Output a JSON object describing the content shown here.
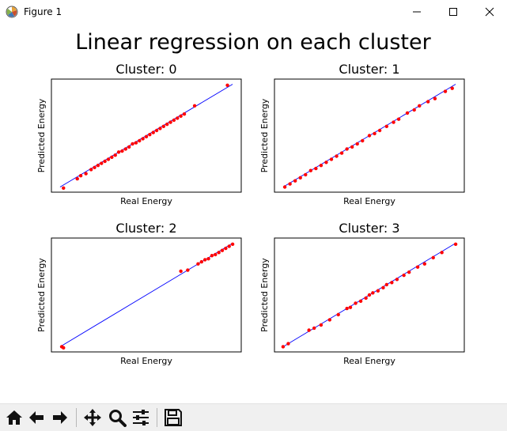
{
  "window": {
    "title": "Figure 1"
  },
  "figure": {
    "suptitle": "Linear regression on each cluster"
  },
  "chart_data": [
    {
      "type": "scatter",
      "title": "Cluster: 0",
      "xlabel": "Real Energy",
      "ylabel": "Predicted Energy",
      "xlim": [
        -0.05,
        1.05
      ],
      "ylim": [
        -0.05,
        1.05
      ],
      "ticks_visible": false,
      "grid": false,
      "series": [
        {
          "kind": "line",
          "color": "#0000ff",
          "x": [
            0.0,
            1.0
          ],
          "y": [
            0.0,
            1.0
          ]
        },
        {
          "kind": "scatter",
          "color": "#ff0000",
          "x": [
            0.02,
            0.1,
            0.12,
            0.15,
            0.18,
            0.2,
            0.22,
            0.24,
            0.26,
            0.28,
            0.3,
            0.32,
            0.34,
            0.36,
            0.38,
            0.4,
            0.42,
            0.44,
            0.46,
            0.48,
            0.5,
            0.52,
            0.54,
            0.56,
            0.58,
            0.6,
            0.62,
            0.64,
            0.66,
            0.68,
            0.7,
            0.72,
            0.78,
            0.97
          ],
          "y": [
            -0.01,
            0.08,
            0.11,
            0.13,
            0.17,
            0.19,
            0.21,
            0.23,
            0.25,
            0.27,
            0.29,
            0.31,
            0.34,
            0.35,
            0.37,
            0.39,
            0.42,
            0.43,
            0.45,
            0.47,
            0.49,
            0.51,
            0.53,
            0.55,
            0.57,
            0.59,
            0.61,
            0.63,
            0.65,
            0.67,
            0.69,
            0.71,
            0.79,
            0.99
          ]
        }
      ]
    },
    {
      "type": "scatter",
      "title": "Cluster: 1",
      "xlabel": "Real Energy",
      "ylabel": "Predicted Energy",
      "xlim": [
        -0.05,
        1.05
      ],
      "ylim": [
        -0.05,
        1.05
      ],
      "ticks_visible": false,
      "grid": false,
      "series": [
        {
          "kind": "line",
          "color": "#0000ff",
          "x": [
            0.0,
            1.0
          ],
          "y": [
            0.0,
            1.0
          ]
        },
        {
          "kind": "scatter",
          "color": "#ff0000",
          "x": [
            0.01,
            0.04,
            0.07,
            0.1,
            0.13,
            0.16,
            0.19,
            0.22,
            0.25,
            0.28,
            0.31,
            0.34,
            0.37,
            0.4,
            0.43,
            0.46,
            0.5,
            0.53,
            0.56,
            0.6,
            0.64,
            0.67,
            0.72,
            0.76,
            0.79,
            0.84,
            0.88,
            0.94,
            0.98
          ],
          "y": [
            0.0,
            0.03,
            0.06,
            0.09,
            0.12,
            0.16,
            0.18,
            0.21,
            0.24,
            0.27,
            0.3,
            0.33,
            0.37,
            0.39,
            0.42,
            0.45,
            0.5,
            0.52,
            0.55,
            0.59,
            0.63,
            0.66,
            0.72,
            0.75,
            0.79,
            0.83,
            0.86,
            0.93,
            0.96
          ]
        }
      ]
    },
    {
      "type": "scatter",
      "title": "Cluster: 2",
      "xlabel": "Real Energy",
      "ylabel": "Predicted Energy",
      "xlim": [
        -0.05,
        1.05
      ],
      "ylim": [
        -0.05,
        1.05
      ],
      "ticks_visible": false,
      "grid": false,
      "series": [
        {
          "kind": "line",
          "color": "#0000ff",
          "x": [
            0.0,
            1.0
          ],
          "y": [
            0.0,
            1.0
          ]
        },
        {
          "kind": "scatter",
          "color": "#ff0000",
          "x": [
            0.01,
            0.02,
            0.7,
            0.74,
            0.8,
            0.82,
            0.84,
            0.86,
            0.88,
            0.9,
            0.92,
            0.94,
            0.96,
            0.98,
            1.0
          ],
          "y": [
            0.0,
            -0.01,
            0.73,
            0.74,
            0.8,
            0.82,
            0.84,
            0.85,
            0.88,
            0.89,
            0.91,
            0.93,
            0.95,
            0.97,
            0.99
          ]
        }
      ]
    },
    {
      "type": "scatter",
      "title": "Cluster: 3",
      "xlabel": "Real Energy",
      "ylabel": "Predicted Energy",
      "xlim": [
        -0.05,
        1.05
      ],
      "ylim": [
        -0.05,
        1.05
      ],
      "ticks_visible": false,
      "grid": false,
      "series": [
        {
          "kind": "line",
          "color": "#0000ff",
          "x": [
            0.0,
            1.0
          ],
          "y": [
            0.0,
            1.0
          ]
        },
        {
          "kind": "scatter",
          "color": "#ff0000",
          "x": [
            0.0,
            0.03,
            0.15,
            0.18,
            0.22,
            0.27,
            0.32,
            0.37,
            0.39,
            0.42,
            0.45,
            0.48,
            0.5,
            0.52,
            0.55,
            0.58,
            0.6,
            0.63,
            0.66,
            0.7,
            0.73,
            0.78,
            0.82,
            0.87,
            0.92,
            1.0
          ],
          "y": [
            0.0,
            0.03,
            0.16,
            0.18,
            0.21,
            0.26,
            0.31,
            0.37,
            0.38,
            0.42,
            0.44,
            0.47,
            0.5,
            0.52,
            0.54,
            0.57,
            0.6,
            0.62,
            0.65,
            0.69,
            0.72,
            0.77,
            0.8,
            0.86,
            0.91,
            0.99
          ]
        }
      ]
    }
  ],
  "toolbar": {
    "buttons": [
      {
        "name": "home-button",
        "icon": "home-icon"
      },
      {
        "name": "back-button",
        "icon": "arrow-left-icon"
      },
      {
        "name": "forward-button",
        "icon": "arrow-right-icon"
      },
      {
        "name": "pan-button",
        "icon": "move-icon"
      },
      {
        "name": "zoom-button",
        "icon": "magnifier-icon"
      },
      {
        "name": "configure-subplots-button",
        "icon": "sliders-icon"
      },
      {
        "name": "save-button",
        "icon": "floppy-disk-icon"
      }
    ]
  }
}
